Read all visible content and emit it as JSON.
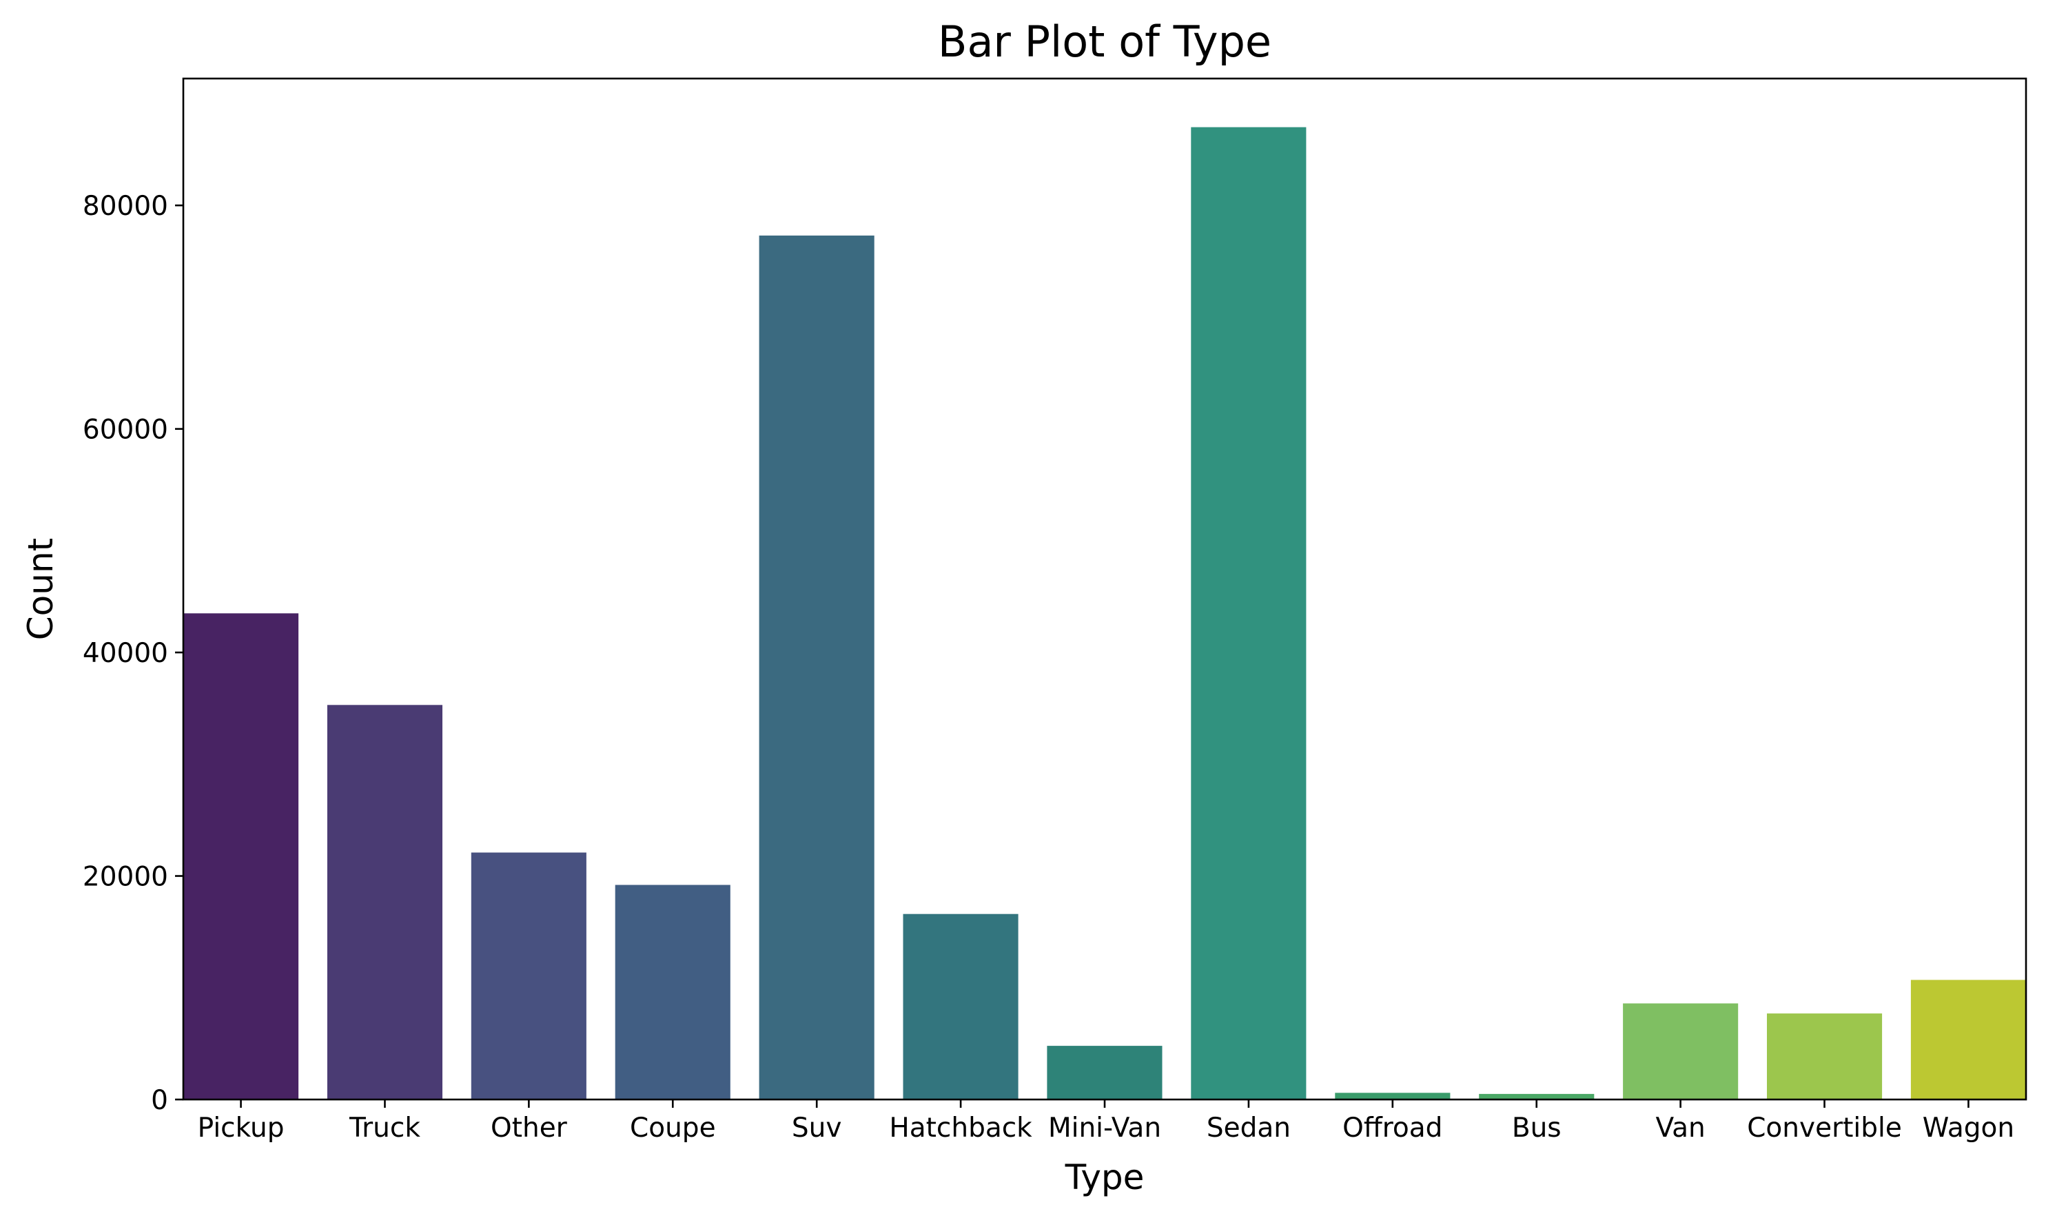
{
  "chart_data": {
    "type": "bar",
    "title": "Bar Plot of Type",
    "xlabel": "Type",
    "ylabel": "Count",
    "categories": [
      "Pickup",
      "Truck",
      "Other",
      "Coupe",
      "Suv",
      "Hatchback",
      "Mini-Van",
      "Sedan",
      "Offroad",
      "Bus",
      "Van",
      "Convertible",
      "Wagon"
    ],
    "values": [
      43500,
      35300,
      22100,
      19200,
      77300,
      16600,
      4800,
      87000,
      600,
      500,
      8600,
      7700,
      10700
    ],
    "colors": [
      "#482363",
      "#4a3b73",
      "#485180",
      "#415e83",
      "#3b6a80",
      "#33757e",
      "#2e8378",
      "#31927f",
      "#3a9c6b",
      "#4aa866",
      "#7fbf62",
      "#9cc64d",
      "#bcc832"
    ],
    "ylim": [
      0,
      91350
    ],
    "yticks": [
      0,
      20000,
      40000,
      60000,
      80000
    ],
    "grid": false,
    "legend": "none"
  }
}
